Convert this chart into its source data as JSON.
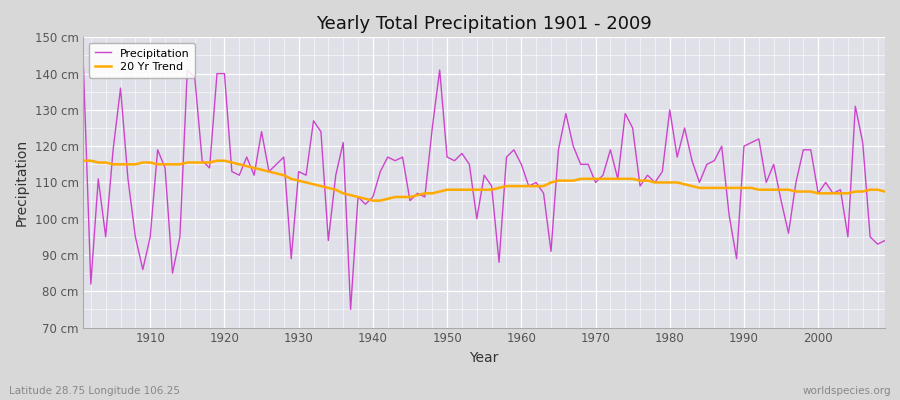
{
  "title": "Yearly Total Precipitation 1901 - 2009",
  "xlabel": "Year",
  "ylabel": "Precipitation",
  "subtitle": "Latitude 28.75 Longitude 106.25",
  "watermark": "worldspecies.org",
  "fig_bg_color": "#d8d8d8",
  "plot_bg_color": "#e0e0e8",
  "precip_color": "#cc44cc",
  "trend_color": "#ffaa00",
  "precip_label": "Precipitation",
  "trend_label": "20 Yr Trend",
  "ylim": [
    70,
    150
  ],
  "yticks": [
    70,
    80,
    90,
    100,
    110,
    120,
    130,
    140,
    150
  ],
  "xlim": [
    1901,
    2009
  ],
  "years": [
    1901,
    1902,
    1903,
    1904,
    1905,
    1906,
    1907,
    1908,
    1909,
    1910,
    1911,
    1912,
    1913,
    1914,
    1915,
    1916,
    1917,
    1918,
    1919,
    1920,
    1921,
    1922,
    1923,
    1924,
    1925,
    1926,
    1927,
    1928,
    1929,
    1930,
    1931,
    1932,
    1933,
    1934,
    1935,
    1936,
    1937,
    1938,
    1939,
    1940,
    1941,
    1942,
    1943,
    1944,
    1945,
    1946,
    1947,
    1948,
    1949,
    1950,
    1951,
    1952,
    1953,
    1954,
    1955,
    1956,
    1957,
    1958,
    1959,
    1960,
    1961,
    1962,
    1963,
    1964,
    1965,
    1966,
    1967,
    1968,
    1969,
    1970,
    1971,
    1972,
    1973,
    1974,
    1975,
    1976,
    1977,
    1978,
    1979,
    1980,
    1981,
    1982,
    1983,
    1984,
    1985,
    1986,
    1987,
    1988,
    1989,
    1990,
    1991,
    1992,
    1993,
    1994,
    1995,
    1996,
    1997,
    1998,
    1999,
    2000,
    2001,
    2002,
    2003,
    2004,
    2005,
    2006,
    2007,
    2008,
    2009
  ],
  "precipitation": [
    142,
    82,
    111,
    95,
    119,
    136,
    111,
    95,
    86,
    95,
    119,
    114,
    85,
    95,
    141,
    139,
    116,
    114,
    140,
    140,
    113,
    112,
    117,
    112,
    124,
    113,
    115,
    117,
    89,
    113,
    112,
    127,
    124,
    94,
    112,
    121,
    75,
    106,
    104,
    106,
    113,
    117,
    116,
    117,
    105,
    107,
    106,
    125,
    141,
    117,
    116,
    118,
    115,
    100,
    112,
    109,
    88,
    117,
    119,
    115,
    109,
    110,
    107,
    91,
    119,
    129,
    120,
    115,
    115,
    110,
    112,
    119,
    111,
    129,
    125,
    109,
    112,
    110,
    113,
    130,
    117,
    125,
    116,
    110,
    115,
    116,
    120,
    101,
    89,
    120,
    121,
    122,
    110,
    115,
    105,
    96,
    110,
    119,
    119,
    107,
    110,
    107,
    108,
    95,
    131,
    121,
    95,
    93,
    94
  ],
  "trend": [
    116.0,
    116.0,
    115.5,
    115.5,
    115.0,
    115.0,
    115.0,
    115.0,
    115.5,
    115.5,
    115.0,
    115.0,
    115.0,
    115.0,
    115.5,
    115.5,
    115.5,
    115.5,
    116.0,
    116.0,
    115.5,
    115.0,
    114.5,
    114.0,
    113.5,
    113.0,
    112.5,
    112.0,
    111.0,
    110.5,
    110.0,
    109.5,
    109.0,
    108.5,
    108.0,
    107.0,
    106.5,
    106.0,
    105.5,
    105.0,
    105.0,
    105.5,
    106.0,
    106.0,
    106.0,
    106.5,
    107.0,
    107.0,
    107.5,
    108.0,
    108.0,
    108.0,
    108.0,
    108.0,
    108.0,
    108.0,
    108.5,
    109.0,
    109.0,
    109.0,
    109.0,
    109.0,
    109.0,
    110.0,
    110.5,
    110.5,
    110.5,
    111.0,
    111.0,
    111.0,
    111.0,
    111.0,
    111.0,
    111.0,
    111.0,
    110.5,
    110.5,
    110.0,
    110.0,
    110.0,
    110.0,
    109.5,
    109.0,
    108.5,
    108.5,
    108.5,
    108.5,
    108.5,
    108.5,
    108.5,
    108.5,
    108.0,
    108.0,
    108.0,
    108.0,
    108.0,
    107.5,
    107.5,
    107.5,
    107.0,
    107.0,
    107.0,
    107.0,
    107.0,
    107.5,
    107.5,
    108.0,
    108.0,
    107.5
  ]
}
